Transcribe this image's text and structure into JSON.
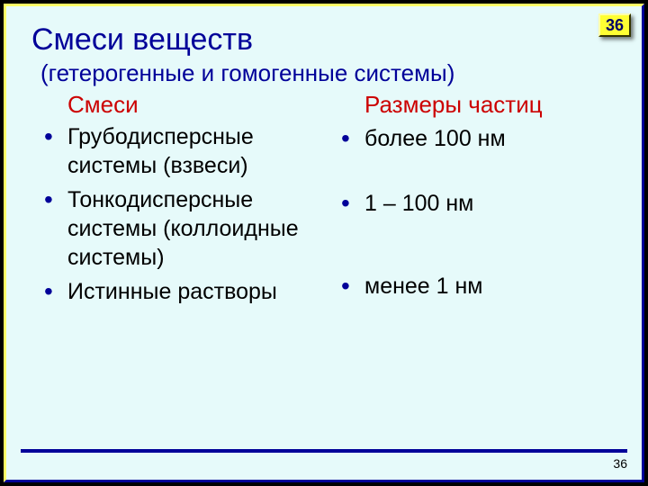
{
  "page": {
    "number_badge": "36",
    "footer_number": "36"
  },
  "title": "Смеси веществ",
  "subtitle": "(гетерогенные и гомогенные системы)",
  "left": {
    "heading": "Смеси",
    "items": [
      "Грубодисперсные системы (взвеси)",
      "Тонкодисперсные системы (коллоидные системы)",
      "Истинные растворы"
    ]
  },
  "right": {
    "heading": "Размеры частиц",
    "items": [
      "более 100 нм",
      "1 – 100 нм",
      "менее 1 нм"
    ],
    "spacing_top": [
      "6px",
      "40px",
      "60px"
    ]
  },
  "colors": {
    "slide_bg": "#e6fafa",
    "accent": "#000099",
    "heading_red": "#cc0000",
    "badge_bg": "#ffff33"
  }
}
